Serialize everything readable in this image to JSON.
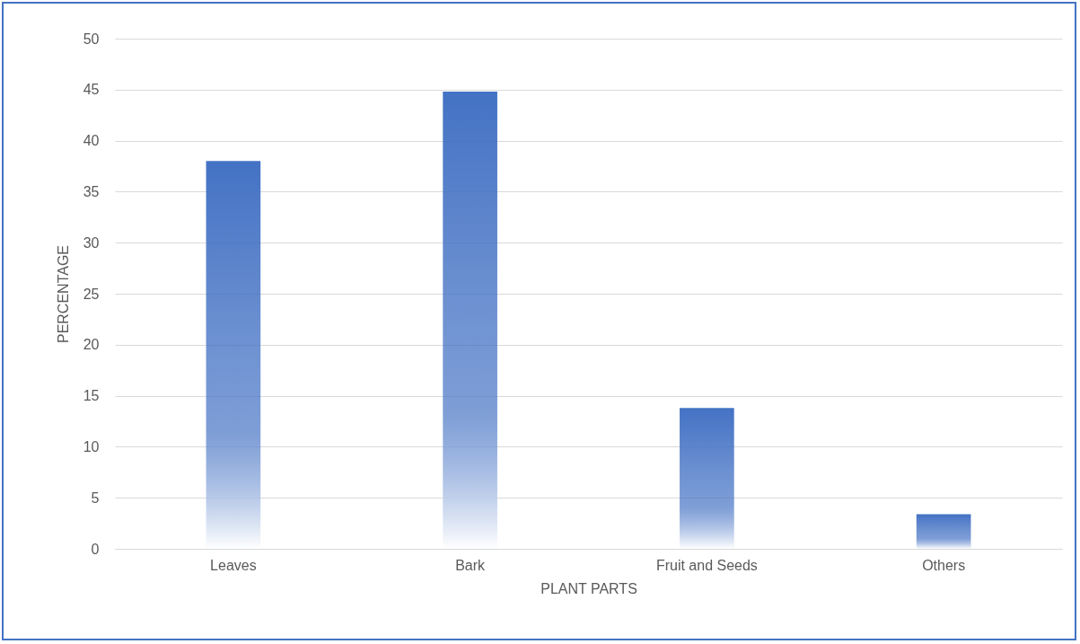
{
  "chart_data": {
    "type": "bar",
    "xlabel": "PLANT PARTS",
    "ylabel": "PERCENTAGE",
    "categories": [
      "Leaves",
      "Bark",
      "Fruit and Seeds",
      "Others"
    ],
    "series": [
      {
        "color": "#4472c4",
        "values": [
          38,
          44.8,
          13.8,
          3.4
        ]
      }
    ],
    "ylim": [
      0,
      50
    ],
    "yticks": [
      0,
      5,
      10,
      15,
      20,
      25,
      30,
      35,
      40,
      45,
      50
    ],
    "grid": "y"
  }
}
